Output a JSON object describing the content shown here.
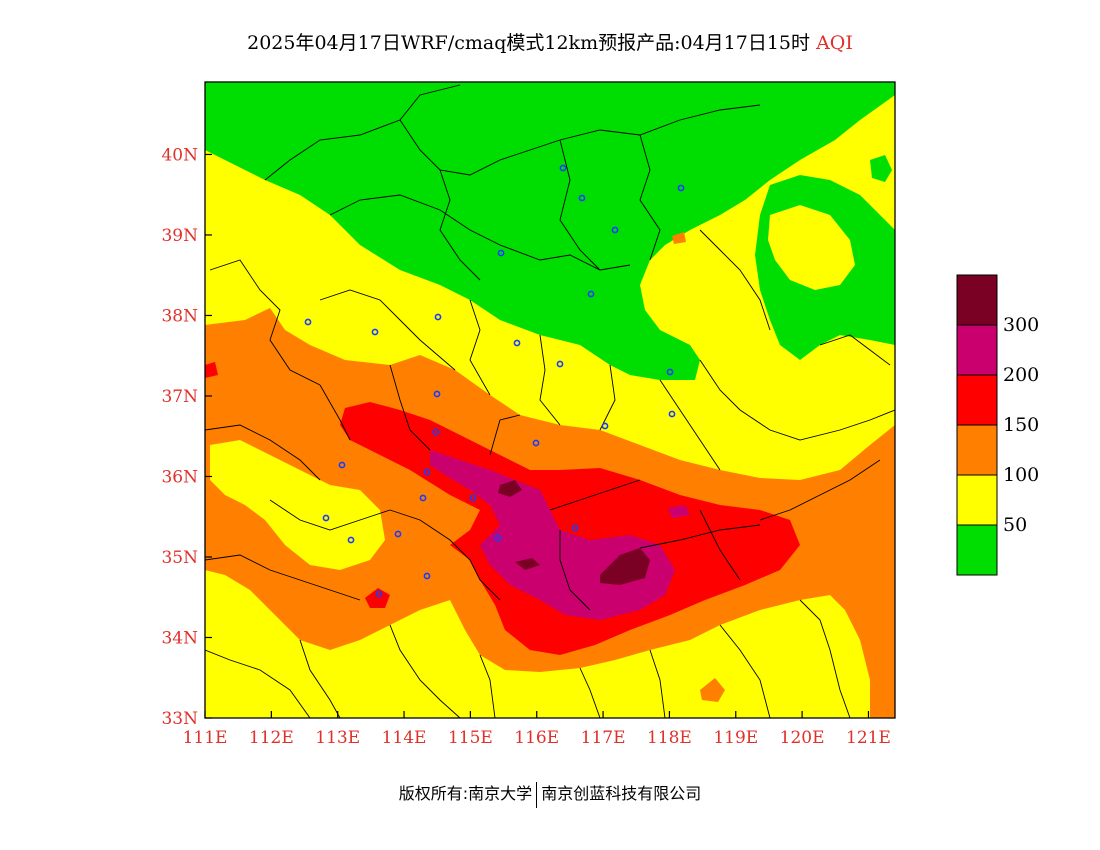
{
  "title": {
    "main": "2025年04月17日WRF/cmaq模式12km预报产品:04月17日15时",
    "variable": "AQI"
  },
  "map": {
    "lon_ticks": [
      "111E",
      "112E",
      "113E",
      "114E",
      "115E",
      "116E",
      "117E",
      "118E",
      "119E",
      "120E",
      "121E"
    ],
    "lat_ticks": [
      "33N",
      "34N",
      "35N",
      "36N",
      "37N",
      "38N",
      "39N",
      "40N"
    ],
    "lon_range": [
      111,
      121.4
    ],
    "lat_range": [
      33,
      40.9
    ]
  },
  "legend": {
    "labels": [
      "300",
      "200",
      "150",
      "100",
      "50"
    ],
    "colors": [
      "#7a0024",
      "#c9006e",
      "#ff0000",
      "#ff7f00",
      "#ffff00",
      "#00dd00"
    ]
  },
  "footer": {
    "left": "版权所有:南京大学",
    "right": "南京创蓝科技有限公司"
  },
  "colors": {
    "good": "#00dd00",
    "moderate": "#ffff00",
    "unhealthy_sensitive": "#ff7f00",
    "unhealthy": "#ff0000",
    "very_unhealthy": "#c9006e",
    "hazardous": "#7a0024",
    "axis_label": "#e0302a"
  }
}
